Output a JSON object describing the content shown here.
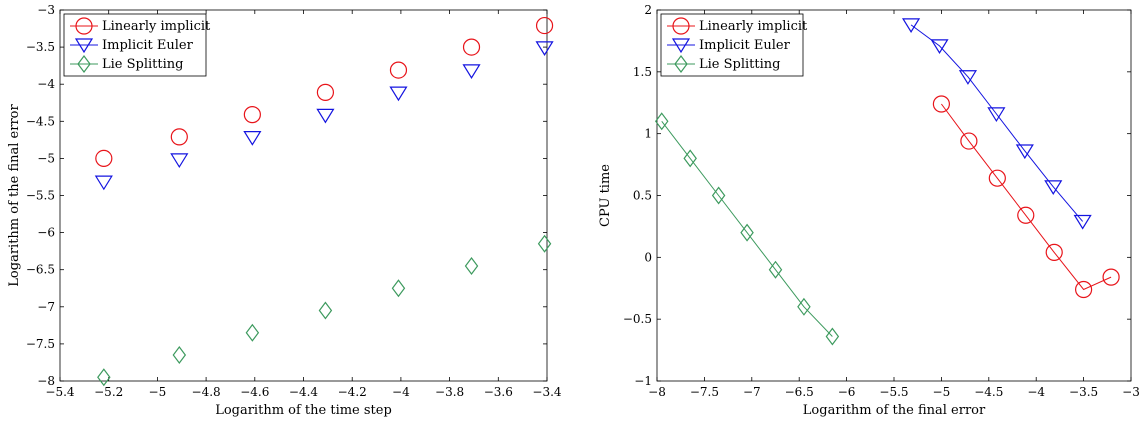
{
  "chart_data": [
    {
      "type": "scatter",
      "title": "",
      "xlabel": "Logarithm of the time step",
      "ylabel": "Logarithm of the final error",
      "xlim": [
        -5.4,
        -3.4
      ],
      "ylim": [
        -8,
        -3
      ],
      "xticks": [
        -5.4,
        -5.2,
        -5.0,
        -4.8,
        -4.6,
        -4.4,
        -4.2,
        -4.0,
        -3.8,
        -3.6,
        -3.4
      ],
      "xtick_labels": [
        "−5.4",
        "−5.2",
        "−5",
        "−4.8",
        "−4.6",
        "−4.4",
        "−4.2",
        "−4",
        "−3.8",
        "−3.6",
        "−3.4"
      ],
      "yticks": [
        -8,
        -7.5,
        -7,
        -6.5,
        -6,
        -5.5,
        -5,
        -4.5,
        -4,
        -3.5,
        -3
      ],
      "ytick_labels": [
        "−8",
        "−7.5",
        "−7",
        "−6.5",
        "−6",
        "−5.5",
        "−5",
        "−4.5",
        "−4",
        "−3.5",
        "−3"
      ],
      "legend_position": "top-left",
      "grid": false,
      "series": [
        {
          "name": "Linearly implicit",
          "color": "#e8141a",
          "marker": "circle",
          "line": false,
          "x": [
            -5.22,
            -4.91,
            -4.61,
            -4.31,
            -4.01,
            -3.71,
            -3.41
          ],
          "y": [
            -5.0,
            -4.71,
            -4.41,
            -4.11,
            -3.81,
            -3.5,
            -3.21
          ]
        },
        {
          "name": "Implicit Euler",
          "color": "#1414e0",
          "marker": "triangle-down",
          "line": false,
          "x": [
            -5.22,
            -4.91,
            -4.61,
            -4.31,
            -4.01,
            -3.71,
            -3.41
          ],
          "y": [
            -5.32,
            -5.02,
            -4.72,
            -4.42,
            -4.12,
            -3.82,
            -3.51
          ]
        },
        {
          "name": "Lie Splitting",
          "color": "#3d9a5e",
          "marker": "diamond",
          "line": false,
          "x": [
            -5.22,
            -4.91,
            -4.61,
            -4.31,
            -4.01,
            -3.71,
            -3.41
          ],
          "y": [
            -7.95,
            -7.65,
            -7.35,
            -7.05,
            -6.75,
            -6.45,
            -6.15
          ]
        }
      ]
    },
    {
      "type": "line",
      "title": "",
      "xlabel": "Logarithm of the final error",
      "ylabel": "CPU time",
      "xlim": [
        -8,
        -3
      ],
      "ylim": [
        -1,
        2
      ],
      "xticks": [
        -8,
        -7.5,
        -7,
        -6.5,
        -6,
        -5.5,
        -5,
        -4.5,
        -4,
        -3.5,
        -3
      ],
      "xtick_labels": [
        "−8",
        "−7.5",
        "−7",
        "−6.5",
        "−6",
        "−5.5",
        "−5",
        "−4.5",
        "−4",
        "−3.5",
        "−3"
      ],
      "yticks": [
        -1,
        -0.5,
        0,
        0.5,
        1,
        1.5,
        2
      ],
      "ytick_labels": [
        "−1",
        "−0.5",
        "0",
        "0.5",
        "1",
        "1.5",
        "2"
      ],
      "legend_position": "top-left",
      "grid": false,
      "series": [
        {
          "name": "Linearly implicit",
          "color": "#e8141a",
          "marker": "circle",
          "line": true,
          "x": [
            -5.0,
            -4.71,
            -4.41,
            -4.11,
            -3.81,
            -3.5,
            -3.21
          ],
          "y": [
            1.24,
            0.94,
            0.64,
            0.34,
            0.04,
            -0.26,
            -0.16
          ]
        },
        {
          "name": "Implicit Euler",
          "color": "#1414e0",
          "marker": "triangle-down",
          "line": true,
          "x": [
            -5.32,
            -5.02,
            -4.72,
            -4.42,
            -4.12,
            -3.82,
            -3.51
          ],
          "y": [
            1.88,
            1.71,
            1.46,
            1.16,
            0.86,
            0.57,
            0.29
          ]
        },
        {
          "name": "Lie Splitting",
          "color": "#3d9a5e",
          "marker": "diamond",
          "line": true,
          "x": [
            -7.95,
            -7.65,
            -7.35,
            -7.05,
            -6.75,
            -6.45,
            -6.15
          ],
          "y": [
            1.1,
            0.8,
            0.5,
            0.2,
            -0.1,
            -0.4,
            -0.64
          ]
        }
      ]
    }
  ]
}
